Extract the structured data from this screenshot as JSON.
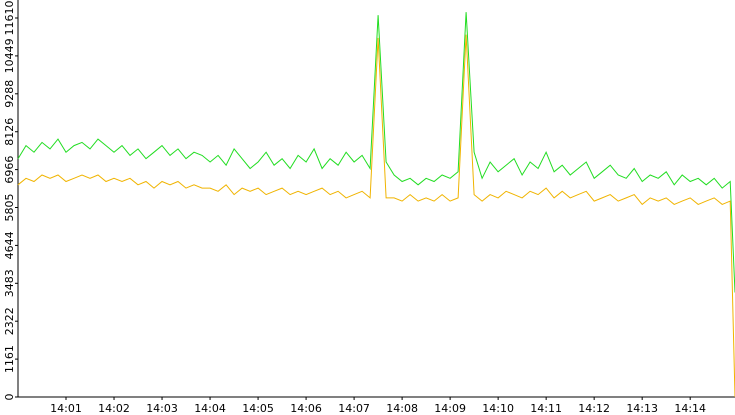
{
  "chart_data": {
    "type": "line",
    "x": [
      0,
      10,
      20,
      30,
      40,
      50,
      60,
      70,
      80,
      90,
      100,
      110,
      120,
      130,
      140,
      150,
      160,
      170,
      180,
      190,
      200,
      210,
      220,
      230,
      240,
      250,
      260,
      270,
      280,
      290,
      300,
      310,
      320,
      330,
      340,
      350,
      360,
      370,
      380,
      390,
      400,
      410,
      420,
      430,
      440,
      450,
      460,
      470,
      480,
      490,
      500,
      510,
      520,
      530,
      540,
      550,
      560,
      570,
      580,
      590,
      600,
      610,
      620,
      630,
      640,
      650,
      660,
      670,
      680,
      690,
      700,
      710,
      720,
      730,
      740,
      750,
      760,
      770,
      780,
      790,
      800,
      810,
      820,
      830,
      840,
      850,
      860,
      870,
      880,
      890,
      896
    ],
    "series": [
      {
        "color": "#22dd22",
        "values": [
          7300,
          7700,
          7500,
          7800,
          7600,
          7900,
          7500,
          7700,
          7800,
          7600,
          7900,
          7700,
          7500,
          7700,
          7400,
          7600,
          7300,
          7500,
          7700,
          7400,
          7600,
          7300,
          7500,
          7400,
          7200,
          7400,
          7100,
          7600,
          7300,
          7000,
          7200,
          7500,
          7100,
          7300,
          7000,
          7400,
          7200,
          7600,
          7000,
          7300,
          7100,
          7500,
          7200,
          7400,
          7000,
          11700,
          7200,
          6800,
          6600,
          6700,
          6500,
          6700,
          6600,
          6800,
          6700,
          6900,
          11790,
          7500,
          6700,
          7200,
          6900,
          7100,
          7300,
          6800,
          7200,
          7000,
          7500,
          6900,
          7100,
          6800,
          7000,
          7200,
          6700,
          6900,
          7100,
          6800,
          6700,
          7000,
          6600,
          6800,
          6700,
          6900,
          6500,
          6800,
          6600,
          6700,
          6500,
          6700,
          6400,
          6600,
          3200
        ]
      },
      {
        "color": "#f0b400",
        "values": [
          6500,
          6700,
          6600,
          6800,
          6700,
          6800,
          6600,
          6700,
          6800,
          6700,
          6800,
          6600,
          6700,
          6600,
          6700,
          6500,
          6600,
          6400,
          6600,
          6500,
          6600,
          6400,
          6500,
          6400,
          6400,
          6300,
          6500,
          6200,
          6400,
          6300,
          6400,
          6200,
          6300,
          6400,
          6200,
          6300,
          6200,
          6300,
          6400,
          6200,
          6300,
          6100,
          6200,
          6300,
          6100,
          11000,
          6100,
          6100,
          6000,
          6200,
          6000,
          6100,
          6000,
          6200,
          6000,
          6100,
          11100,
          6200,
          6000,
          6200,
          6100,
          6300,
          6200,
          6100,
          6300,
          6200,
          6400,
          6100,
          6300,
          6100,
          6200,
          6300,
          6000,
          6100,
          6200,
          6000,
          6100,
          6200,
          5900,
          6100,
          6000,
          6100,
          5900,
          6000,
          6100,
          5900,
          6000,
          6100,
          5900,
          6000,
          0
        ]
      }
    ],
    "xlim": [
      0,
      896
    ],
    "xticks": [
      {
        "value": 60,
        "label": "14:01"
      },
      {
        "value": 120,
        "label": "14:02"
      },
      {
        "value": 180,
        "label": "14:03"
      },
      {
        "value": 240,
        "label": "14:04"
      },
      {
        "value": 300,
        "label": "14:05"
      },
      {
        "value": 360,
        "label": "14:06"
      },
      {
        "value": 420,
        "label": "14:07"
      },
      {
        "value": 480,
        "label": "14:08"
      },
      {
        "value": 540,
        "label": "14:09"
      },
      {
        "value": 600,
        "label": "14:10"
      },
      {
        "value": 660,
        "label": "14:11"
      },
      {
        "value": 720,
        "label": "14:12"
      },
      {
        "value": 780,
        "label": "14:13"
      },
      {
        "value": 840,
        "label": "14:14"
      }
    ],
    "ylim": [
      0,
      11610
    ],
    "yticks": [
      0,
      1161,
      2322,
      3483,
      4644,
      5805,
      6966,
      8126,
      9288,
      10449,
      11610
    ]
  }
}
